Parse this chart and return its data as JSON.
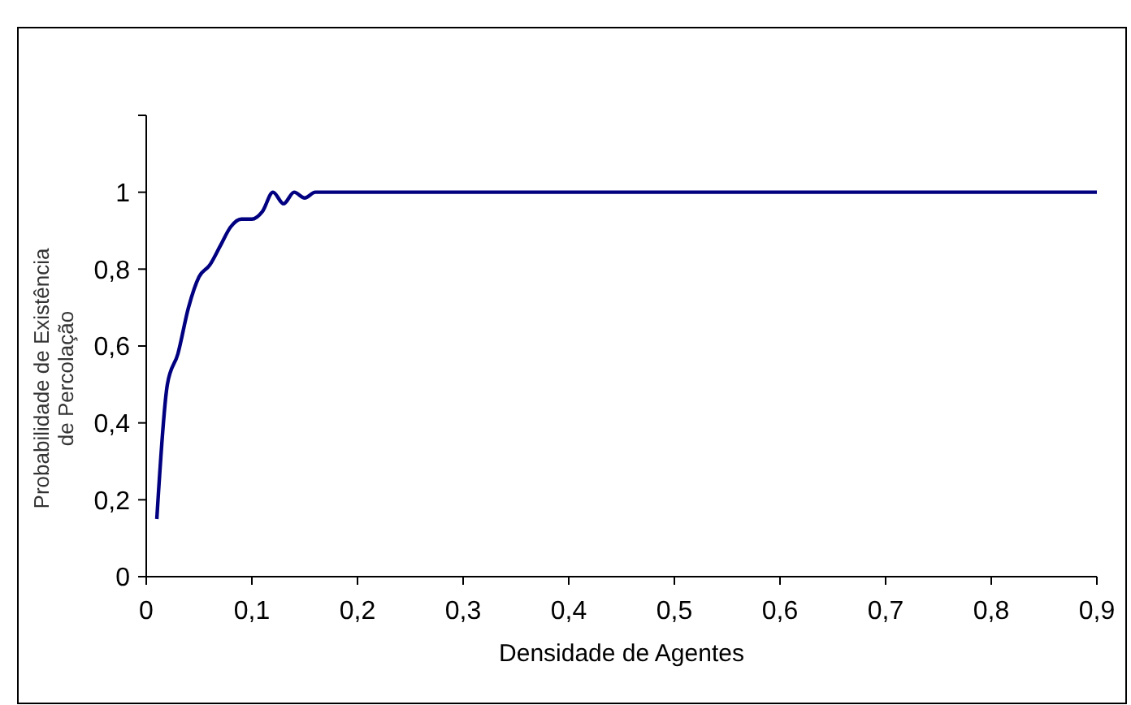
{
  "chart_data": {
    "type": "line",
    "xlabel": "Densidade de Agentes",
    "ylabel": "Probabilidade de Existência\nde Percolação",
    "x": [
      0.01,
      0.02,
      0.03,
      0.04,
      0.05,
      0.06,
      0.07,
      0.08,
      0.09,
      0.1,
      0.11,
      0.12,
      0.13,
      0.14,
      0.15,
      0.16,
      0.2,
      0.3,
      0.4,
      0.5,
      0.6,
      0.7,
      0.8,
      0.9
    ],
    "series": [
      {
        "color": "#000080",
        "values": [
          0.15,
          0.5,
          0.58,
          0.7,
          0.78,
          0.81,
          0.86,
          0.91,
          0.93,
          0.93,
          0.95,
          1.0,
          0.97,
          1.0,
          0.985,
          1.0,
          1,
          1,
          1,
          1,
          1,
          1,
          1,
          1
        ]
      }
    ],
    "xlim": [
      0,
      0.9
    ],
    "xticks": [
      {
        "value": 0,
        "label": "0"
      },
      {
        "value": 0.1,
        "label": "0,1"
      },
      {
        "value": 0.2,
        "label": "0,2"
      },
      {
        "value": 0.3,
        "label": "0,3"
      },
      {
        "value": 0.4,
        "label": "0,4"
      },
      {
        "value": 0.5,
        "label": "0,5"
      },
      {
        "value": 0.6,
        "label": "0,6"
      },
      {
        "value": 0.7,
        "label": "0,7"
      },
      {
        "value": 0.8,
        "label": "0,8"
      },
      {
        "value": 0.9,
        "label": "0,9"
      }
    ],
    "ylim": [
      0,
      1.2
    ],
    "yticks": [
      {
        "value": 0,
        "label": "0"
      },
      {
        "value": 0.2,
        "label": "0,2"
      },
      {
        "value": 0.4,
        "label": "0,4"
      },
      {
        "value": 0.6,
        "label": "0,6"
      },
      {
        "value": 0.8,
        "label": "0,8"
      },
      {
        "value": 1,
        "label": "1"
      },
      {
        "value": 1.2,
        "label": null
      }
    ],
    "grid": false,
    "marker": "none",
    "line_style": "solid"
  }
}
